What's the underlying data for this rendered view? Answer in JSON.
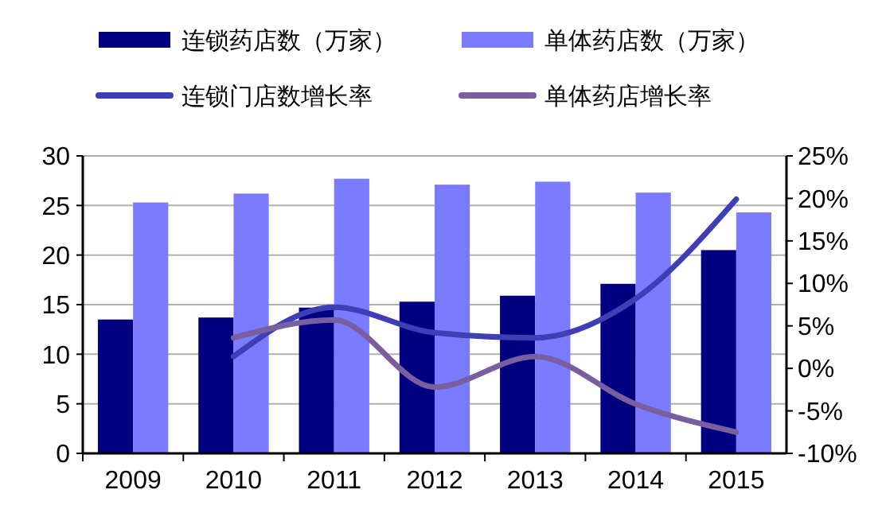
{
  "chart_data": {
    "type": "bar",
    "categories": [
      "2009",
      "2010",
      "2011",
      "2012",
      "2013",
      "2014",
      "2015"
    ],
    "series": [
      {
        "name": "连锁药店数（万家）",
        "color": "#000080",
        "values": [
          13.5,
          13.7,
          14.7,
          15.3,
          15.9,
          17.1,
          20.5
        ]
      },
      {
        "name": "单体药店数（万家）",
        "color": "#7b7bff",
        "values": [
          25.3,
          26.2,
          27.7,
          27.1,
          27.4,
          26.3,
          24.3
        ]
      },
      {
        "name": "连锁门店数增长率",
        "type": "line",
        "axis": "y2",
        "color": "#3f3fb5",
        "values": [
          null,
          1.4,
          7.2,
          4.2,
          3.6,
          8.2,
          19.9
        ]
      },
      {
        "name": "单体药店增长率",
        "type": "line",
        "axis": "y2",
        "color": "#7a5fa0",
        "values": [
          null,
          3.6,
          5.7,
          -2.2,
          1.4,
          -4.2,
          -7.5
        ]
      }
    ],
    "ylim": [
      0,
      30
    ],
    "yticks": [
      0,
      5,
      10,
      15,
      20,
      25,
      30
    ],
    "y2lim": [
      -10,
      25
    ],
    "y2ticks": [
      {
        "value": -10,
        "label": "-10%"
      },
      {
        "value": -5,
        "label": "-5%"
      },
      {
        "value": 0,
        "label": "0%"
      },
      {
        "value": 5,
        "label": "5%"
      },
      {
        "value": 10,
        "label": "10%"
      },
      {
        "value": 15,
        "label": "15%"
      },
      {
        "value": 20,
        "label": "20%"
      },
      {
        "value": 25,
        "label": "25%"
      }
    ],
    "grid": "y",
    "legend": "top",
    "marker": "none",
    "line_style": "solid"
  }
}
